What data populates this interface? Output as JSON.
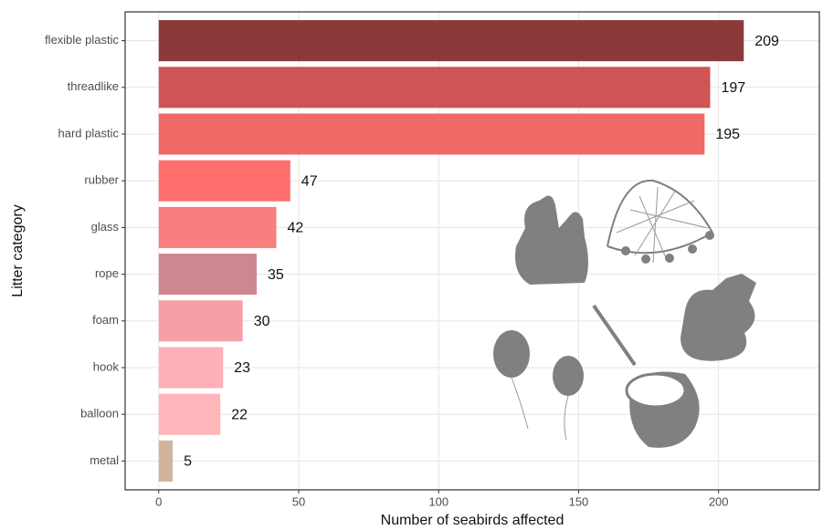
{
  "chart_data": {
    "type": "barh",
    "x_label": "Number of seabirds affected",
    "y_label": "Litter category",
    "categories": [
      "flexible plastic",
      "threadlike",
      "hard plastic",
      "rubber",
      "glass",
      "rope",
      "foam",
      "hook",
      "balloon",
      "metal"
    ],
    "values": [
      209,
      197,
      195,
      47,
      42,
      35,
      30,
      23,
      22,
      5
    ],
    "colors": [
      "#8b3a3a",
      "#cd5555",
      "#f06a67",
      "#ff6e6c",
      "#f77f7d",
      "#cd8790",
      "#f4a0a6",
      "#ffb0b8",
      "#ffb6bb",
      "#d2b49c"
    ],
    "xlim": [
      -12,
      236
    ],
    "xticks": [
      0,
      50,
      100,
      150,
      200
    ],
    "grid": true
  }
}
